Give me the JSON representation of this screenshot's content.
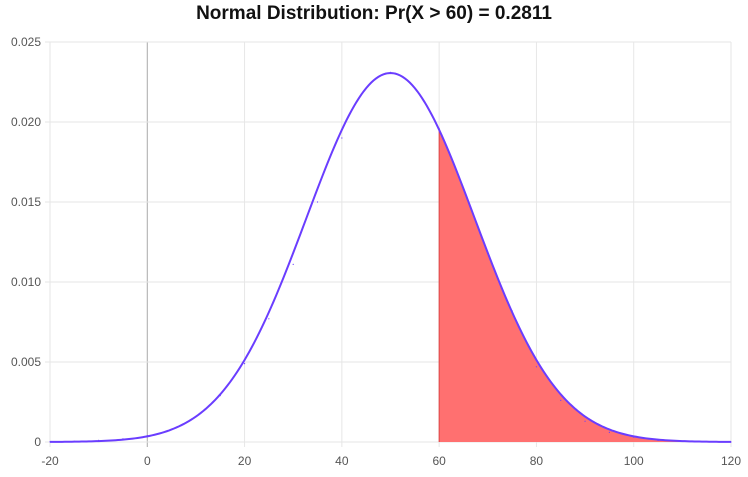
{
  "chart_data": {
    "type": "area",
    "title": "Normal Distribution: Pr(X > 60) = 0.2811",
    "xlabel": "",
    "ylabel": "",
    "xlim": [
      -20,
      120
    ],
    "ylim": [
      0,
      0.025
    ],
    "x_ticks": [
      "-20",
      "0",
      "20",
      "40",
      "60",
      "80",
      "100",
      "120"
    ],
    "y_ticks": [
      "0",
      "0.005",
      "0.010",
      "0.015",
      "0.020",
      "0.025"
    ],
    "grid": true,
    "distribution": {
      "mean": 50,
      "sd": 17.3
    },
    "shaded_region": {
      "from": 60,
      "to": 120,
      "probability": 0.2811
    },
    "x": [
      -20,
      -15,
      -10,
      -5,
      0,
      5,
      10,
      15,
      20,
      25,
      30,
      35,
      40,
      45,
      50,
      55,
      60,
      65,
      70,
      75,
      80,
      85,
      90,
      95,
      100,
      105,
      110,
      115,
      120
    ],
    "y": [
      1e-05,
      4e-05,
      0.0001,
      0.0002,
      0.0004,
      0.0008,
      0.0016,
      0.0029,
      0.0049,
      0.0077,
      0.0111,
      0.015,
      0.019,
      0.0221,
      0.0231,
      0.0221,
      0.0196,
      0.0158,
      0.0118,
      0.0082,
      0.0047,
      0.0026,
      0.0013,
      0.0006,
      0.0003,
      0.0001,
      4e-05,
      1e-05,
      3e-06
    ],
    "colors": {
      "line": "#6a3dff",
      "fill": "#ff7070",
      "grid": "#e6e6e6",
      "zero_line": "#aaaaaa"
    }
  }
}
